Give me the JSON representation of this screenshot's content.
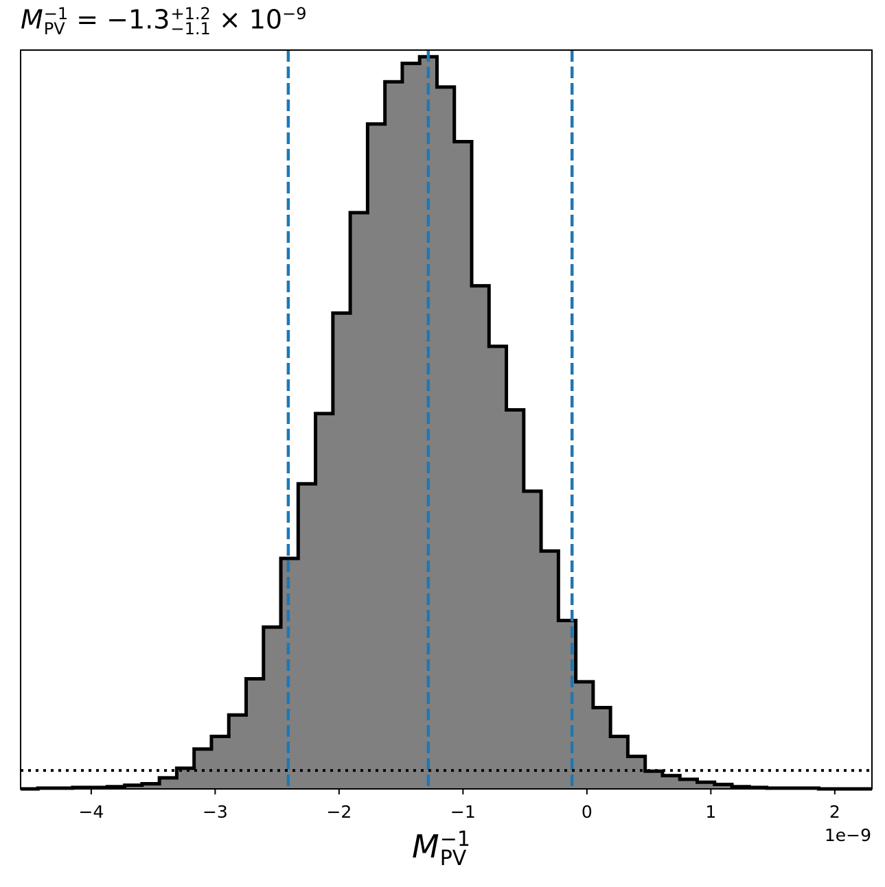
{
  "title": {
    "var_base": "M",
    "var_sub": "PV",
    "var_sup": "−1",
    "equals": " = −1.3",
    "err_plus": "+1.2",
    "err_minus": "−1.1",
    "times": " × 10",
    "exp": "−9"
  },
  "xlabel": {
    "base": "M",
    "sub": "PV",
    "sup": "−1"
  },
  "offset_text": "1e−9",
  "colors": {
    "fill": "#808080",
    "edge": "#000000",
    "quantile_line": "#1f77b4",
    "reference_line": "#000000"
  },
  "chart_data": {
    "type": "bar",
    "x_scale": 1e-09,
    "xlim": [
      -4.57,
      2.3
    ],
    "ylim": [
      0,
      1.0
    ],
    "x_ticks": [
      -4,
      -3,
      -2,
      -1,
      0,
      1,
      2
    ],
    "x_tick_labels": [
      "−4",
      "−3",
      "−2",
      "−1",
      "0",
      "1",
      "2"
    ],
    "y_ticks_visible": false,
    "grid": false,
    "bin_edges": [
      -4.57,
      -4.43,
      -4.29,
      -4.15,
      -4.01,
      -3.87,
      -3.73,
      -3.59,
      -3.45,
      -3.31,
      -3.17,
      -3.03,
      -2.89,
      -2.75,
      -2.61,
      -2.47,
      -2.33,
      -2.19,
      -2.05,
      -1.91,
      -1.77,
      -1.63,
      -1.49,
      -1.35,
      -1.21,
      -1.07,
      -0.93,
      -0.79,
      -0.65,
      -0.51,
      -0.37,
      -0.23,
      -0.09,
      0.05,
      0.19,
      0.33,
      0.47,
      0.61,
      0.75,
      0.89,
      1.03,
      1.17,
      1.31,
      1.45,
      1.59,
      1.73,
      1.87,
      2.01,
      2.15,
      2.3
    ],
    "bin_heights": [
      0.0,
      0.001,
      0.001,
      0.002,
      0.002,
      0.003,
      0.005,
      0.007,
      0.015,
      0.028,
      0.054,
      0.071,
      0.1,
      0.149,
      0.219,
      0.312,
      0.413,
      0.508,
      0.644,
      0.78,
      0.9,
      0.957,
      0.982,
      0.991,
      0.95,
      0.876,
      0.681,
      0.599,
      0.513,
      0.403,
      0.322,
      0.228,
      0.145,
      0.11,
      0.071,
      0.044,
      0.024,
      0.018,
      0.013,
      0.009,
      0.006,
      0.003,
      0.002,
      0.001,
      0.001,
      0.001,
      0.0,
      0.0,
      0.0
    ],
    "quantile_lines": [
      -2.41,
      -1.28,
      -0.12
    ],
    "quantile_line_style": "dashed",
    "reference_line_y": 0.025,
    "reference_line_style": "dotted"
  }
}
